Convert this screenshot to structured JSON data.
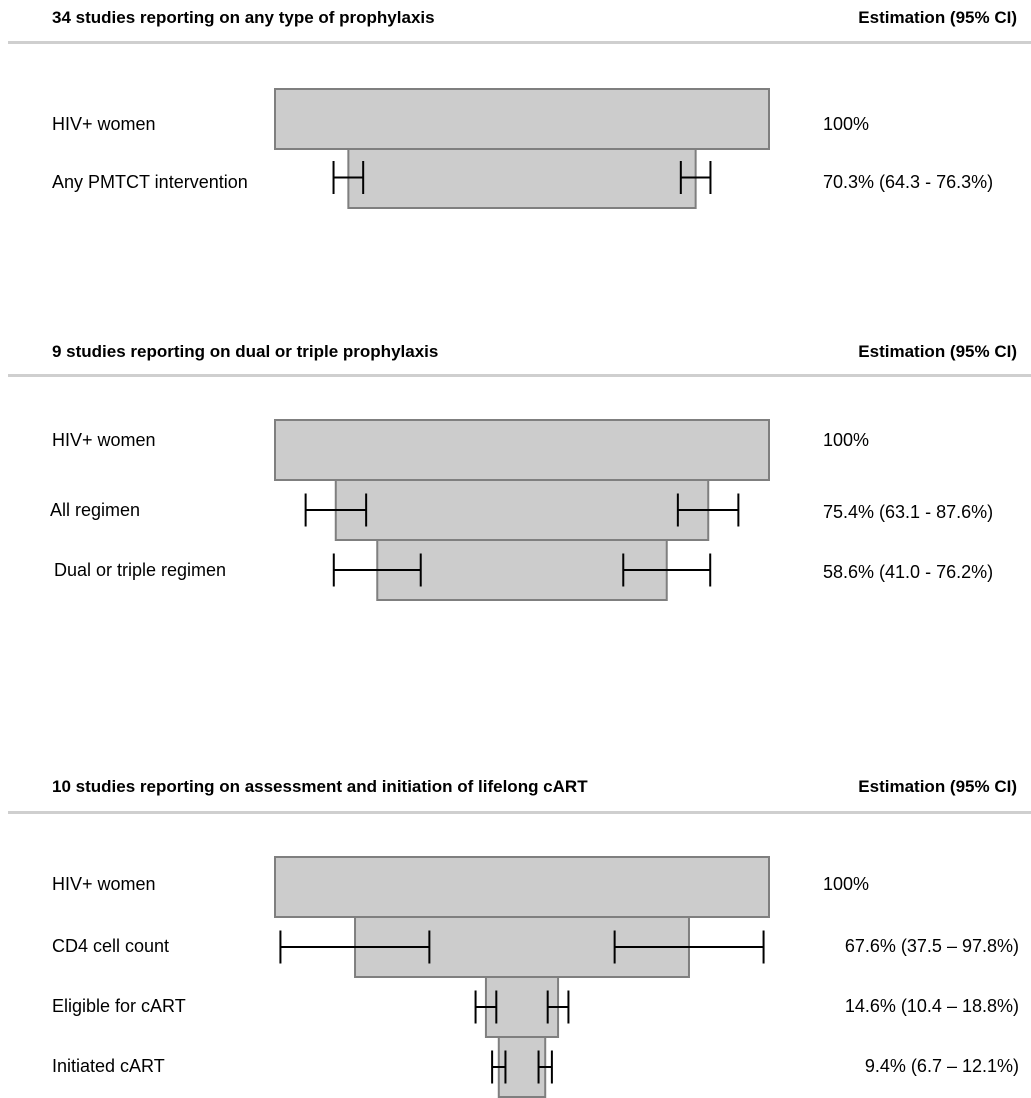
{
  "chart_data": [
    {
      "type": "bar",
      "title": "34 studies reporting on any type of prophylaxis",
      "estimate_header": "Estimation (95% CI)",
      "categories": [
        "HIV+ women",
        "Any PMTCT intervention"
      ],
      "values": [
        100,
        70.3
      ],
      "ci_low": [
        null,
        64.3
      ],
      "ci_high": [
        null,
        76.3
      ],
      "estimate_labels": [
        "100%",
        "70.3% (64.3 - 76.3%)"
      ]
    },
    {
      "type": "bar",
      "title": "9 studies reporting on dual or triple prophylaxis",
      "estimate_header": "Estimation (95% CI)",
      "categories": [
        "HIV+ women",
        "All regimen",
        "Dual or triple regimen"
      ],
      "values": [
        100,
        75.4,
        58.6
      ],
      "ci_low": [
        null,
        63.1,
        41.0
      ],
      "ci_high": [
        null,
        87.6,
        76.2
      ],
      "estimate_labels": [
        "100%",
        "75.4% (63.1 - 87.6%)",
        "58.6% (41.0 - 76.2%)"
      ]
    },
    {
      "type": "bar",
      "title": "10 studies reporting on assessment and initiation of lifelong cART",
      "estimate_header": "Estimation (95% CI)",
      "categories": [
        "HIV+ women",
        "CD4 cell count",
        "Eligible for cART",
        "Initiated cART"
      ],
      "values": [
        100,
        67.6,
        14.6,
        9.4
      ],
      "ci_low": [
        null,
        37.5,
        10.4,
        6.7
      ],
      "ci_high": [
        null,
        97.8,
        18.8,
        12.1
      ],
      "estimate_labels": [
        "100%",
        "67.6% (37.5 – 97.8%)",
        "14.6% (10.4 – 18.8%)",
        "9.4% (6.7 – 12.1%)"
      ]
    }
  ],
  "colors": {
    "bar_fill": "#cccccc",
    "bar_stroke": "#7f7f7f",
    "divider": "#cfcfcf",
    "error_bar": "#000000"
  }
}
